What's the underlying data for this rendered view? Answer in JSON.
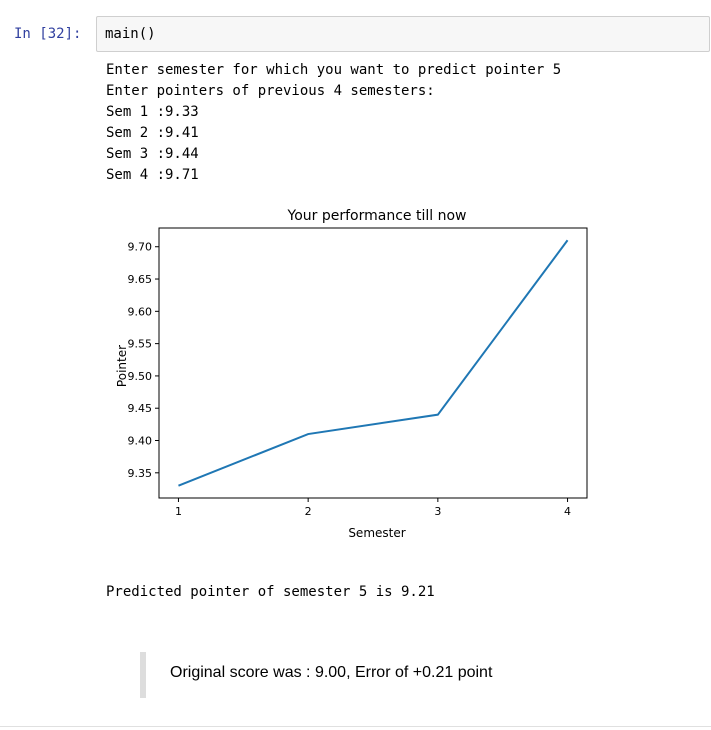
{
  "cell": {
    "prompt": "In [32]:",
    "code": "main()"
  },
  "output": {
    "lines": [
      "Enter semester for which you want to predict pointer 5",
      "Enter pointers of previous 4 semesters:",
      "Sem 1 :9.33",
      "Sem 2 :9.41",
      "Sem 3 :9.44",
      "Sem 4 :9.71"
    ],
    "prediction": "Predicted pointer of semester 5 is 9.21"
  },
  "markdown": {
    "note": "Original score was : 9.00, Error of +0.21 point"
  },
  "chart_data": {
    "type": "line",
    "title": "Your performance till now",
    "xlabel": "Semester",
    "ylabel": "Pointer",
    "x": [
      1,
      2,
      3,
      4
    ],
    "y": [
      9.33,
      9.41,
      9.44,
      9.71
    ],
    "x_ticks": [
      "1",
      "2",
      "3",
      "4"
    ],
    "y_ticks": [
      "9.35",
      "9.40",
      "9.45",
      "9.50",
      "9.55",
      "9.60",
      "9.65",
      "9.70"
    ],
    "y_tick_values": [
      9.35,
      9.4,
      9.45,
      9.5,
      9.55,
      9.6,
      9.65,
      9.7
    ],
    "xlim": [
      0.85,
      4.15
    ],
    "ylim": [
      9.311,
      9.729
    ],
    "line_color": "#1f77b4",
    "grid": false,
    "legend": "none"
  }
}
